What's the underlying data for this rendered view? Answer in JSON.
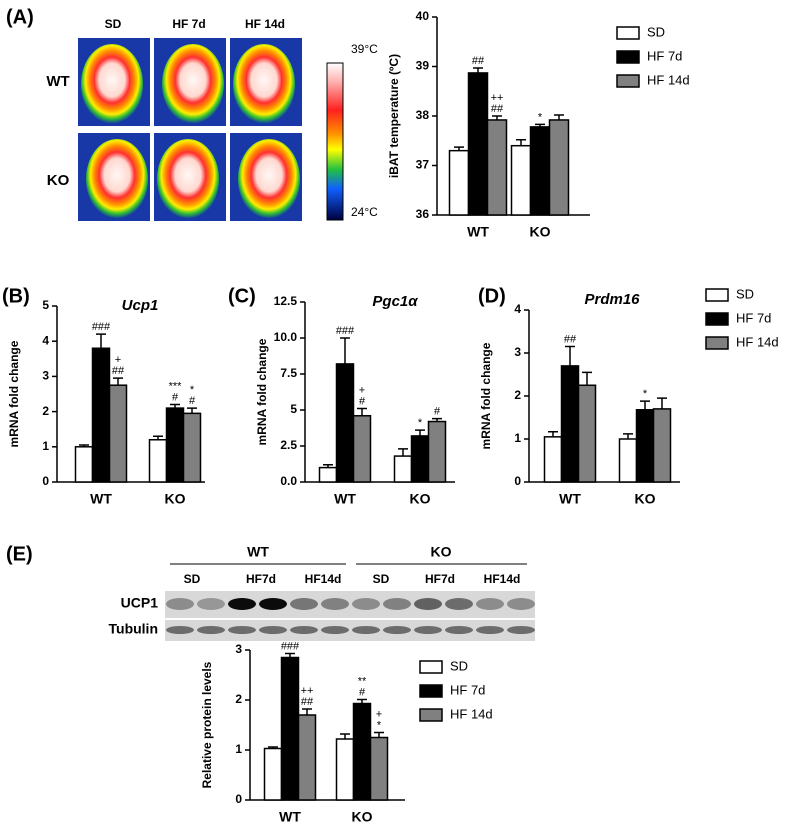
{
  "thermal": {
    "columns": [
      "SD",
      "HF 7d",
      "HF 14d"
    ],
    "rows": [
      "WT",
      "KO"
    ],
    "scale_max": "39°C",
    "scale_min": "24°C"
  },
  "blot": {
    "groups": [
      "WT",
      "KO"
    ],
    "lanes": [
      "SD",
      "HF7d",
      "HF14d",
      "SD",
      "HF7d",
      "HF14d"
    ],
    "rows": [
      "UCP1",
      "Tubulin"
    ]
  },
  "chart_data": [
    {
      "type": "bar",
      "panel": "(A)",
      "ylabel": "iBAT temperature (ºC)",
      "categories": [
        "WT",
        "KO"
      ],
      "ylim": [
        36,
        40
      ],
      "yticks": [
        36,
        37,
        38,
        39,
        40
      ],
      "legend": "right",
      "series": [
        {
          "name": "SD",
          "color": "#ffffff",
          "values": [
            37.3,
            37.4
          ],
          "errors": [
            0.07,
            0.12
          ],
          "annotations": [
            null,
            null
          ]
        },
        {
          "name": "HF 7d",
          "color": "#000000",
          "values": [
            38.87,
            37.78
          ],
          "errors": [
            0.1,
            0.05
          ],
          "annotations": [
            [
              "##"
            ],
            [
              "*"
            ]
          ]
        },
        {
          "name": "HF 14d",
          "color": "#808080",
          "values": [
            37.92,
            37.92
          ],
          "errors": [
            0.08,
            0.1
          ],
          "annotations": [
            [
              "++",
              "##"
            ],
            null
          ]
        }
      ]
    },
    {
      "type": "bar",
      "panel": "(B)",
      "title": "Ucp1",
      "ylabel": "mRNA fold change",
      "categories": [
        "WT",
        "KO"
      ],
      "ylim": [
        0,
        5
      ],
      "yticks": [
        0,
        1,
        2,
        3,
        4,
        5
      ],
      "series": [
        {
          "color": "#ffffff",
          "values": [
            1.0,
            1.2
          ],
          "errors": [
            0.05,
            0.1
          ],
          "annotations": [
            null,
            null
          ]
        },
        {
          "color": "#000000",
          "values": [
            3.8,
            2.1
          ],
          "errors": [
            0.4,
            0.1
          ],
          "annotations": [
            [
              "###"
            ],
            [
              "***",
              "#"
            ]
          ]
        },
        {
          "color": "#808080",
          "values": [
            2.75,
            1.95
          ],
          "errors": [
            0.2,
            0.15
          ],
          "annotations": [
            [
              "+",
              "##"
            ],
            [
              "*",
              "#"
            ]
          ]
        }
      ]
    },
    {
      "type": "bar",
      "panel": "(C)",
      "title": "Pgc1α",
      "ylabel": "mRNA fold change",
      "categories": [
        "WT",
        "KO"
      ],
      "ylim": [
        0,
        12.5
      ],
      "yticks": [
        {
          "value": 0,
          "label": "0.0"
        },
        2.5,
        5,
        7.5,
        {
          "value": 10,
          "label": "10.0"
        },
        12.5
      ],
      "series": [
        {
          "color": "#ffffff",
          "values": [
            1.0,
            1.8
          ],
          "errors": [
            0.2,
            0.5
          ],
          "annotations": [
            null,
            null
          ]
        },
        {
          "color": "#000000",
          "values": [
            8.2,
            3.2
          ],
          "errors": [
            1.8,
            0.4
          ],
          "annotations": [
            [
              "###"
            ],
            [
              "*"
            ]
          ]
        },
        {
          "color": "#808080",
          "values": [
            4.6,
            4.2
          ],
          "errors": [
            0.5,
            0.2
          ],
          "annotations": [
            [
              "+",
              "#"
            ],
            [
              "#"
            ]
          ]
        }
      ]
    },
    {
      "type": "bar",
      "panel": "(D)",
      "title": "Prdm16",
      "ylabel": "mRNA fold change",
      "categories": [
        "WT",
        "KO"
      ],
      "ylim": [
        0,
        4
      ],
      "yticks": [
        0,
        1,
        2,
        3,
        4
      ],
      "legend": "right",
      "series": [
        {
          "name": "SD",
          "color": "#ffffff",
          "values": [
            1.05,
            1.0
          ],
          "errors": [
            0.12,
            0.12
          ],
          "annotations": [
            null,
            null
          ]
        },
        {
          "name": "HF 7d",
          "color": "#000000",
          "values": [
            2.7,
            1.68
          ],
          "errors": [
            0.45,
            0.2
          ],
          "annotations": [
            [
              "##"
            ],
            [
              "*"
            ]
          ]
        },
        {
          "name": "HF 14d",
          "color": "#808080",
          "values": [
            2.25,
            1.7
          ],
          "errors": [
            0.3,
            0.25
          ],
          "annotations": [
            null,
            null
          ]
        }
      ]
    },
    {
      "type": "bar",
      "panel": "(E)",
      "ylabel": "Relative protein levels",
      "categories": [
        "WT",
        "KO"
      ],
      "ylim": [
        0,
        3
      ],
      "yticks": [
        0,
        1,
        2,
        3
      ],
      "legend": "right",
      "series": [
        {
          "name": "SD",
          "color": "#ffffff",
          "values": [
            1.03,
            1.22
          ],
          "errors": [
            0.03,
            0.1
          ],
          "annotations": [
            null,
            null
          ]
        },
        {
          "name": "HF 7d",
          "color": "#000000",
          "values": [
            2.85,
            1.93
          ],
          "errors": [
            0.08,
            0.08
          ],
          "annotations": [
            [
              "###"
            ],
            [
              "**",
              "#"
            ]
          ]
        },
        {
          "name": "HF 14d",
          "color": "#808080",
          "values": [
            1.7,
            1.25
          ],
          "errors": [
            0.12,
            0.1
          ],
          "annotations": [
            [
              "++",
              "##"
            ],
            [
              "+",
              "*"
            ]
          ]
        }
      ]
    }
  ]
}
